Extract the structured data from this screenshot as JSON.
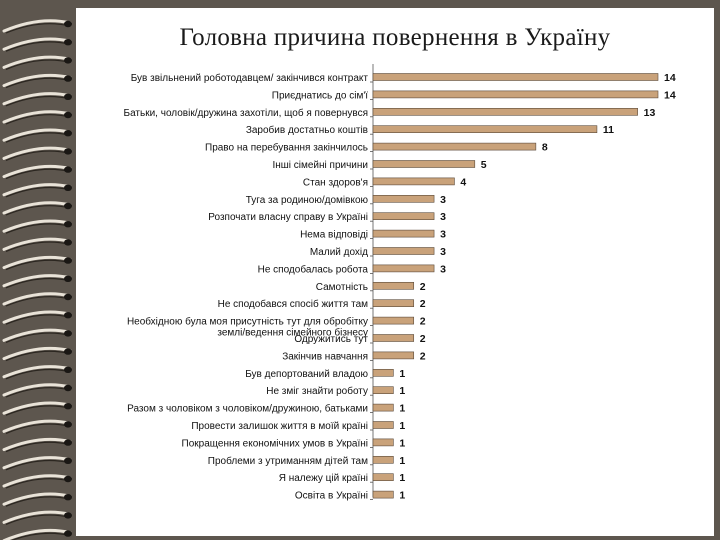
{
  "slide": {
    "title": "Головна причина повернення в Україну"
  },
  "chart_data": {
    "type": "bar",
    "orientation": "horizontal",
    "title": "Головна причина повернення в Україну",
    "bar_color": "#c9a27a",
    "bar_stroke": "#5a4a3a",
    "xlim": [
      0,
      14
    ],
    "grid": false,
    "legend": "none",
    "categories": [
      "Був звільнений роботодавцем/ закінчився контракт",
      "Приєднатись до сім'ї",
      "Батьки, чоловік/дружина захотіли, щоб я повернувся",
      "Заробив достатньо коштів",
      "Право на перебування закінчилось",
      "Інші сімейні причини",
      "Стан здоров'я",
      "Туга за родиною/домівкою",
      "Розпочати власну справу в Україні",
      "Нема відповіді",
      "Малий дохід",
      "Не сподобалась робота",
      "Самотність",
      "Не сподобався спосіб життя там",
      "Необхідною була моя присутність тут для обробітку землі/ведення сімейного бізнесу",
      "Одружитись тут",
      "Закінчив навчання",
      "Був депортований владою",
      "Не зміг знайти роботу",
      "Разом з чоловіком з чоловіком/дружиною, батьками",
      "Провести залишок життя в моїй країні",
      "Покращення економічних умов в Україні",
      "Проблеми з утриманням дітей там",
      "Я належу цій країні",
      "Освіта в Україні"
    ],
    "values": [
      14,
      14,
      13,
      11,
      8,
      5,
      4,
      3,
      3,
      3,
      3,
      3,
      2,
      2,
      2,
      2,
      2,
      1,
      1,
      1,
      1,
      1,
      1,
      1,
      1
    ]
  }
}
